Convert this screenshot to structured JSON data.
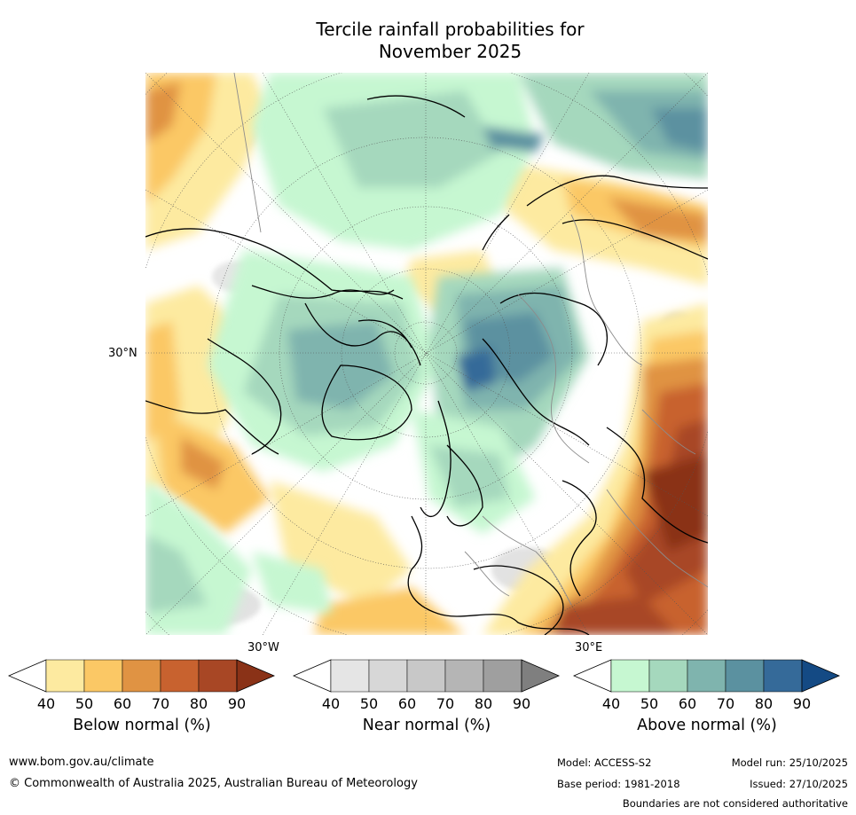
{
  "title": {
    "line1": "Tercile rainfall probabilities for",
    "line2": "November 2025"
  },
  "map": {
    "projection": "north-polar-stereographic",
    "labels": {
      "lat": "30°N",
      "lon_west": "30°W",
      "lon_east": "30°E"
    }
  },
  "legend": {
    "ticks": [
      "40",
      "50",
      "60",
      "70",
      "80",
      "90"
    ],
    "bars": [
      {
        "id": "below",
        "title": "Below normal (%)",
        "colors": [
          "#ffffff",
          "#fdeaa0",
          "#fbc865",
          "#e09343",
          "#c8622f",
          "#a84725",
          "#8a3217"
        ]
      },
      {
        "id": "near",
        "title": "Near normal (%)",
        "colors": [
          "#ffffff",
          "#e5e5e5",
          "#d7d7d7",
          "#c8c8c8",
          "#b5b5b5",
          "#9f9f9f",
          "#7f7f7f"
        ]
      },
      {
        "id": "above",
        "title": "Above normal (%)",
        "colors": [
          "#ffffff",
          "#c6f7d1",
          "#a5d8bd",
          "#7fb4ae",
          "#5b91a0",
          "#356a99",
          "#144a84"
        ]
      }
    ]
  },
  "footer": {
    "url": "www.bom.gov.au/climate",
    "copyright": "© Commonwealth of Australia 2025, Australian Bureau of Meteorology",
    "model": "Model: ACCESS-S2",
    "base_period": "Base period: 1981-2018",
    "model_run": "Model run: 25/10/2025",
    "issued": "Issued: 27/10/2025",
    "disclaimer": "Boundaries are not considered authoritative"
  }
}
